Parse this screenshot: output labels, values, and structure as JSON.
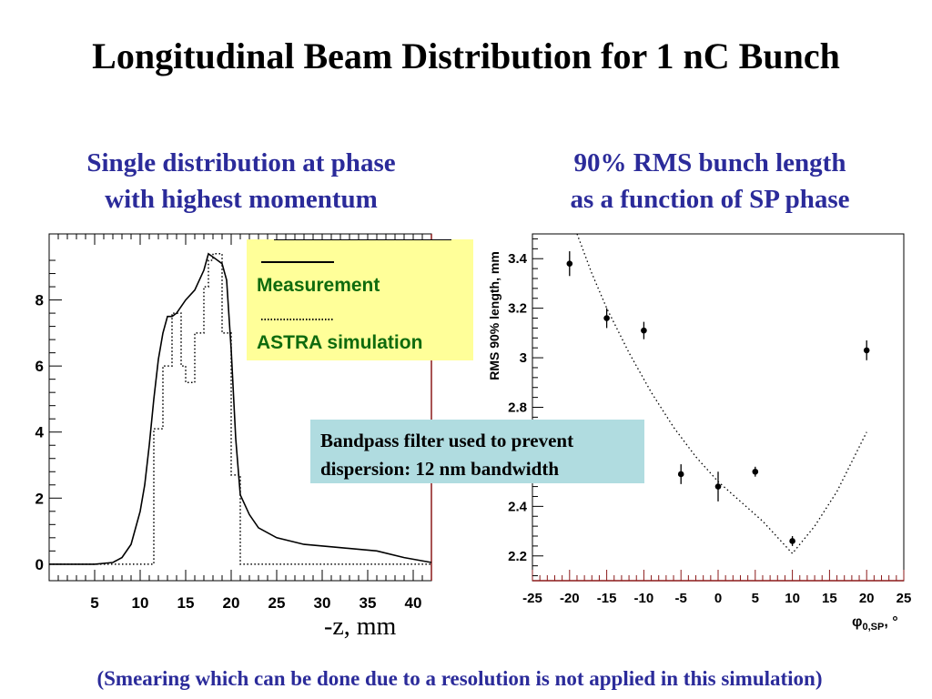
{
  "slide": {
    "title": "Longitudinal Beam Distribution for 1 nC Bunch",
    "left_heading": "Single distribution at phase\nwith highest momentum",
    "right_heading": "90% RMS bunch length\nas a function of SP phase",
    "note": "Bandpass filter used to prevent\ndispersion: 12 nm bandwidth",
    "footer": "(Smearing which can be done due to a resolution is not applied in this simulation)"
  },
  "colors": {
    "heading": "#2b2b9a",
    "legend_bg": "#ffff99",
    "legend_text": "#0e6b0e",
    "note_bg": "#b0dce0",
    "axis_accent": "#8b1a1a"
  },
  "chart_data": [
    {
      "type": "line",
      "xlabel": "-z, mm",
      "ylabel": "",
      "xlim": [
        0,
        42
      ],
      "ylim": [
        -0.5,
        10
      ],
      "x_ticks": [
        5,
        10,
        15,
        20,
        25,
        30,
        35,
        40
      ],
      "y_ticks": [
        0,
        2,
        4,
        6,
        8
      ],
      "legend": {
        "position": "top-right",
        "entries": [
          "Measurement",
          "ASTRA simulation"
        ]
      },
      "series": [
        {
          "name": "Measurement",
          "style": "solid",
          "x": [
            0,
            5,
            7,
            8,
            9,
            10,
            10.5,
            11,
            11.5,
            12,
            12.5,
            13,
            13.5,
            14,
            15,
            16,
            17,
            17.5,
            18,
            18.5,
            19,
            19.5,
            20,
            20.5,
            21,
            22,
            23,
            25,
            28,
            32,
            36,
            39,
            42
          ],
          "y": [
            0,
            0,
            0.05,
            0.2,
            0.6,
            1.6,
            2.4,
            3.6,
            5.0,
            6.2,
            7.0,
            7.5,
            7.5,
            7.6,
            8.0,
            8.3,
            8.9,
            9.4,
            9.3,
            9.2,
            9.1,
            8.6,
            6.5,
            3.8,
            2.1,
            1.5,
            1.1,
            0.8,
            0.6,
            0.5,
            0.4,
            0.2,
            0.05
          ]
        },
        {
          "name": "ASTRA simulation",
          "style": "dotted",
          "x": [
            0,
            11.5,
            11.5,
            12.5,
            12.5,
            13.5,
            13.5,
            14.5,
            14.5,
            15,
            15,
            16,
            16,
            17,
            17,
            17.5,
            17.5,
            18,
            18,
            19,
            19,
            20,
            20,
            21,
            21,
            42
          ],
          "y": [
            0,
            0,
            4.1,
            4.1,
            6.0,
            6.0,
            7.6,
            7.6,
            6.0,
            6.0,
            5.5,
            5.5,
            7.0,
            7.0,
            8.4,
            8.4,
            9.2,
            9.2,
            9.4,
            9.4,
            7.0,
            7.0,
            2.7,
            2.7,
            0,
            0
          ]
        }
      ]
    },
    {
      "type": "scatter",
      "xlabel": "φ",
      "xlabel_sub": "0,SP",
      "xlabel_unit": ", °",
      "ylabel": "RMS 90% length, mm",
      "xlim": [
        -25,
        25
      ],
      "ylim": [
        2.1,
        3.5
      ],
      "x_ticks": [
        -25,
        -20,
        -15,
        -10,
        -5,
        0,
        5,
        10,
        15,
        20,
        25
      ],
      "x_tick_labels": [
        "-25",
        "-20",
        "-15",
        "-10",
        "-5",
        "0",
        "5",
        "10",
        "15",
        "20",
        "25"
      ],
      "y_ticks": [
        2.2,
        2.4,
        2.6,
        2.8,
        3,
        3.2,
        3.4
      ],
      "y_tick_labels": [
        "2.2",
        "2.4",
        "",
        "2.8",
        "3",
        "3.2",
        "3.4"
      ],
      "series": [
        {
          "name": "Measurement",
          "kind": "points",
          "x": [
            -20,
            -15,
            -10,
            -5,
            0,
            5,
            10,
            20
          ],
          "y": [
            3.38,
            3.16,
            3.11,
            2.53,
            2.48,
            2.54,
            2.26,
            3.03
          ],
          "yerr": [
            0.05,
            0.04,
            0.035,
            0.04,
            0.06,
            0.02,
            0.02,
            0.04
          ]
        },
        {
          "name": "ASTRA simulation",
          "kind": "dotted-line",
          "x": [
            -19,
            -17,
            -15,
            -12,
            -9,
            -6,
            -3,
            0,
            3,
            6,
            10,
            13,
            16,
            20
          ],
          "y": [
            3.5,
            3.34,
            3.2,
            3.02,
            2.86,
            2.72,
            2.6,
            2.5,
            2.42,
            2.34,
            2.21,
            2.32,
            2.46,
            2.7
          ]
        }
      ]
    }
  ]
}
